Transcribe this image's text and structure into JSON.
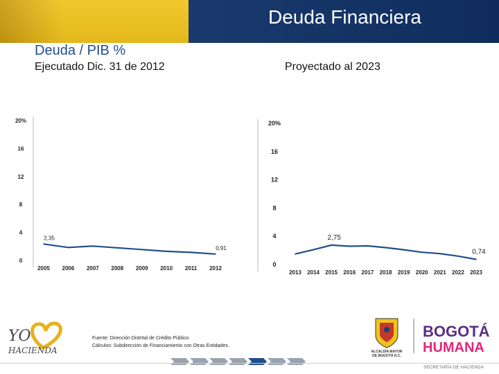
{
  "header": {
    "title": "Deuda Financiera"
  },
  "section": {
    "title": "Deuda / PIB %",
    "left_subtitle": "Ejecutado Dic. 31 de 2012",
    "right_subtitle": "Proyectado al 2023"
  },
  "chart_data": [
    {
      "type": "line",
      "x": [
        "2005",
        "2006",
        "2007",
        "2008",
        "2009",
        "2010",
        "2011",
        "2012"
      ],
      "values": [
        2.35,
        1.85,
        2.05,
        1.8,
        1.55,
        1.3,
        1.15,
        0.91
      ],
      "ylim": [
        0,
        20
      ],
      "yticks": [
        "0",
        "4",
        "8",
        "12",
        "16",
        "20%"
      ],
      "annotations": [
        {
          "label": "2,35",
          "index": 0
        },
        {
          "label": "0,91",
          "index": 7
        }
      ],
      "color": "#1f4e8c"
    },
    {
      "type": "line",
      "x": [
        "2013",
        "2014",
        "2015",
        "2016",
        "2017",
        "2018",
        "2019",
        "2020",
        "2021",
        "2022",
        "2023"
      ],
      "values": [
        1.5,
        2.1,
        2.75,
        2.6,
        2.65,
        2.4,
        2.1,
        1.75,
        1.55,
        1.2,
        0.74
      ],
      "ylim": [
        0,
        20
      ],
      "yticks": [
        "0",
        "4",
        "8",
        "12",
        "16",
        "20%"
      ],
      "annotations": [
        {
          "label": "2,75",
          "index": 2
        },
        {
          "label": "0,74",
          "index": 10
        }
      ],
      "color": "#1f4e8c"
    }
  ],
  "footer": {
    "source": "Fuente: Dirección Distrital de Crédito Público.",
    "calc": "Cálculos: Subdirección de Financiamiento con Otras Entidades.",
    "department": "SECRETARÍA DE HACIENDA"
  },
  "logos": {
    "left_line1": "YO",
    "left_line2": "HACIENDA",
    "alcaldia1": "ALCALDÍA MAYOR",
    "alcaldia2": "DE BOGOTÁ D.C.",
    "bogota": "BOGOTÁ",
    "humana": "HUMANA"
  }
}
